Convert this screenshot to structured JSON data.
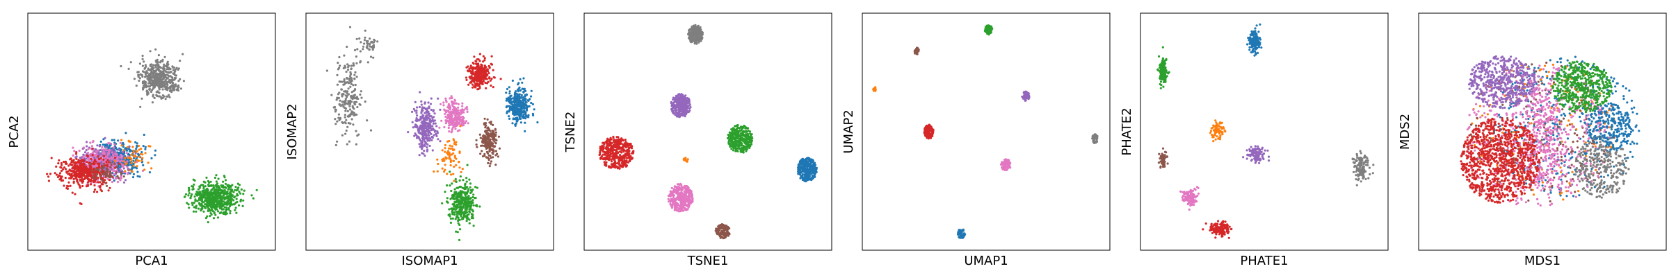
{
  "figure": {
    "panel_count": 6,
    "colors": {
      "blue": "#1f77b4",
      "orange": "#ff7f0e",
      "green": "#2ca02c",
      "red": "#d62728",
      "purple": "#9467bd",
      "brown": "#8c564b",
      "pink": "#e377c2",
      "gray": "#7f7f7f"
    }
  },
  "chart_data": [
    {
      "type": "scatter",
      "title": "",
      "xlabel": "PCA1",
      "ylabel": "PCA2",
      "xlim": [
        0,
        100
      ],
      "ylim": [
        0,
        100
      ],
      "grid": false,
      "ticks": false,
      "clusters": [
        {
          "color": "#7f7f7f",
          "center": [
            53,
            72
          ],
          "spread": [
            7,
            7
          ],
          "n": 450,
          "shape": "round"
        },
        {
          "color": "#1f77b4",
          "center": [
            36,
            39
          ],
          "spread": [
            9,
            6
          ],
          "n": 350,
          "shape": "round"
        },
        {
          "color": "#9467bd",
          "center": [
            30,
            38
          ],
          "spread": [
            8,
            6
          ],
          "n": 300,
          "shape": "round"
        },
        {
          "color": "#e377c2",
          "center": [
            30,
            37
          ],
          "spread": [
            9,
            7
          ],
          "n": 300,
          "shape": "round"
        },
        {
          "color": "#d62728",
          "center": [
            23,
            33
          ],
          "spread": [
            9,
            6
          ],
          "n": 450,
          "shape": "round"
        },
        {
          "color": "#ff7f0e",
          "center": [
            42,
            40
          ],
          "spread": [
            6,
            6
          ],
          "n": 50,
          "shape": "round"
        },
        {
          "color": "#8c564b",
          "center": [
            32,
            33
          ],
          "spread": [
            5,
            4
          ],
          "n": 60,
          "shape": "round"
        },
        {
          "color": "#2ca02c",
          "center": [
            76,
            22
          ],
          "spread": [
            9,
            6
          ],
          "n": 600,
          "shape": "round"
        }
      ]
    },
    {
      "type": "scatter",
      "title": "",
      "xlabel": "ISOMAP1",
      "ylabel": "ISOMAP2",
      "xlim": [
        0,
        100
      ],
      "ylim": [
        0,
        100
      ],
      "grid": false,
      "ticks": false,
      "clusters": [
        {
          "color": "#7f7f7f",
          "center": [
            17,
            65
          ],
          "spread": [
            5,
            14
          ],
          "n": 220,
          "shape": "round"
        },
        {
          "color": "#7f7f7f",
          "center": [
            25,
            87
          ],
          "spread": [
            3,
            4
          ],
          "n": 40,
          "shape": "round"
        },
        {
          "color": "#d62728",
          "center": [
            70,
            74
          ],
          "spread": [
            4,
            5
          ],
          "n": 300,
          "shape": "round"
        },
        {
          "color": "#1f77b4",
          "center": [
            86,
            61
          ],
          "spread": [
            4,
            7
          ],
          "n": 300,
          "shape": "round"
        },
        {
          "color": "#9467bd",
          "center": [
            48,
            52
          ],
          "spread": [
            4,
            9
          ],
          "n": 300,
          "shape": "round"
        },
        {
          "color": "#e377c2",
          "center": [
            60,
            57
          ],
          "spread": [
            4,
            6
          ],
          "n": 220,
          "shape": "round"
        },
        {
          "color": "#8c564b",
          "center": [
            74,
            46
          ],
          "spread": [
            3,
            7
          ],
          "n": 220,
          "shape": "round"
        },
        {
          "color": "#ff7f0e",
          "center": [
            58,
            40
          ],
          "spread": [
            5,
            8
          ],
          "n": 70,
          "shape": "round"
        },
        {
          "color": "#2ca02c",
          "center": [
            63,
            20
          ],
          "spread": [
            5,
            8
          ],
          "n": 350,
          "shape": "round"
        }
      ]
    },
    {
      "type": "scatter",
      "title": "",
      "xlabel": "TSNE1",
      "ylabel": "TSNE2",
      "xlim": [
        0,
        100
      ],
      "ylim": [
        0,
        100
      ],
      "grid": false,
      "ticks": false,
      "clusters": [
        {
          "color": "#7f7f7f",
          "center": [
            45,
            91
          ],
          "spread": [
            3,
            4
          ],
          "n": 260,
          "shape": "disc"
        },
        {
          "color": "#9467bd",
          "center": [
            39,
            61
          ],
          "spread": [
            4,
            5
          ],
          "n": 300,
          "shape": "disc"
        },
        {
          "color": "#2ca02c",
          "center": [
            63,
            47
          ],
          "spread": [
            5,
            6
          ],
          "n": 320,
          "shape": "disc"
        },
        {
          "color": "#d62728",
          "center": [
            13,
            41
          ],
          "spread": [
            7,
            7
          ],
          "n": 420,
          "shape": "disc"
        },
        {
          "color": "#1f77b4",
          "center": [
            90,
            34
          ],
          "spread": [
            4,
            5
          ],
          "n": 260,
          "shape": "disc"
        },
        {
          "color": "#e377c2",
          "center": [
            39,
            22
          ],
          "spread": [
            5,
            6
          ],
          "n": 320,
          "shape": "disc"
        },
        {
          "color": "#8c564b",
          "center": [
            56,
            8
          ],
          "spread": [
            3,
            3
          ],
          "n": 120,
          "shape": "disc"
        },
        {
          "color": "#ff7f0e",
          "center": [
            41,
            38
          ],
          "spread": [
            1,
            1
          ],
          "n": 15,
          "shape": "disc"
        }
      ]
    },
    {
      "type": "scatter",
      "title": "",
      "xlabel": "UMAP1",
      "ylabel": "UMAP2",
      "xlim": [
        0,
        100
      ],
      "ylim": [
        0,
        100
      ],
      "grid": false,
      "ticks": false,
      "clusters": [
        {
          "color": "#2ca02c",
          "center": [
            51,
            93
          ],
          "spread": [
            1.5,
            2
          ],
          "n": 80,
          "shape": "disc"
        },
        {
          "color": "#8c564b",
          "center": [
            22,
            84
          ],
          "spread": [
            1,
            1.5
          ],
          "n": 30,
          "shape": "disc"
        },
        {
          "color": "#ff7f0e",
          "center": [
            5,
            68
          ],
          "spread": [
            0.8,
            1
          ],
          "n": 8,
          "shape": "disc"
        },
        {
          "color": "#9467bd",
          "center": [
            66,
            65
          ],
          "spread": [
            1.5,
            2
          ],
          "n": 60,
          "shape": "disc"
        },
        {
          "color": "#d62728",
          "center": [
            27,
            50
          ],
          "spread": [
            2,
            3
          ],
          "n": 120,
          "shape": "disc"
        },
        {
          "color": "#7f7f7f",
          "center": [
            94,
            47
          ],
          "spread": [
            1.2,
            2
          ],
          "n": 50,
          "shape": "disc"
        },
        {
          "color": "#e377c2",
          "center": [
            58,
            36
          ],
          "spread": [
            2,
            2.5
          ],
          "n": 80,
          "shape": "disc"
        },
        {
          "color": "#1f77b4",
          "center": [
            40,
            7
          ],
          "spread": [
            1.5,
            2
          ],
          "n": 60,
          "shape": "disc"
        }
      ]
    },
    {
      "type": "scatter",
      "title": "",
      "xlabel": "PHATE1",
      "ylabel": "PHATE2",
      "xlim": [
        0,
        100
      ],
      "ylim": [
        0,
        100
      ],
      "grid": false,
      "ticks": false,
      "clusters": [
        {
          "color": "#1f77b4",
          "center": [
            46,
            88
          ],
          "spread": [
            2,
            4
          ],
          "n": 160,
          "shape": "round"
        },
        {
          "color": "#2ca02c",
          "center": [
            9,
            75
          ],
          "spread": [
            1.5,
            5
          ],
          "n": 150,
          "shape": "round"
        },
        {
          "color": "#ff7f0e",
          "center": [
            31,
            50
          ],
          "spread": [
            2.5,
            4
          ],
          "n": 70,
          "shape": "round"
        },
        {
          "color": "#9467bd",
          "center": [
            47,
            40
          ],
          "spread": [
            3,
            3
          ],
          "n": 110,
          "shape": "round"
        },
        {
          "color": "#8c564b",
          "center": [
            9,
            38
          ],
          "spread": [
            1.5,
            3
          ],
          "n": 60,
          "shape": "round"
        },
        {
          "color": "#7f7f7f",
          "center": [
            89,
            35
          ],
          "spread": [
            3,
            5
          ],
          "n": 120,
          "shape": "round"
        },
        {
          "color": "#e377c2",
          "center": [
            20,
            22
          ],
          "spread": [
            2.5,
            3
          ],
          "n": 120,
          "shape": "round"
        },
        {
          "color": "#d62728",
          "center": [
            32,
            9
          ],
          "spread": [
            4,
            2.5
          ],
          "n": 140,
          "shape": "round"
        }
      ]
    },
    {
      "type": "scatter",
      "title": "",
      "xlabel": "MDS1",
      "ylabel": "MDS2",
      "xlim": [
        0,
        100
      ],
      "ylim": [
        0,
        100
      ],
      "grid": false,
      "ticks": false,
      "clusters": [
        {
          "color": "#1f77b4",
          "center": [
            60,
            52
          ],
          "spread": [
            30,
            30
          ],
          "n": 380,
          "shape": "ball"
        },
        {
          "color": "#ff7f0e",
          "center": [
            50,
            50
          ],
          "spread": [
            30,
            30
          ],
          "n": 160,
          "shape": "ball"
        },
        {
          "color": "#8c564b",
          "center": [
            50,
            50
          ],
          "spread": [
            30,
            30
          ],
          "n": 200,
          "shape": "ball"
        },
        {
          "color": "#e377c2",
          "center": [
            48,
            48
          ],
          "spread": [
            30,
            30
          ],
          "n": 450,
          "shape": "ball"
        },
        {
          "color": "#7f7f7f",
          "center": [
            74,
            35
          ],
          "spread": [
            11,
            13
          ],
          "n": 300,
          "shape": "disc"
        },
        {
          "color": "#1f77b4",
          "center": [
            77,
            52
          ],
          "spread": [
            9,
            10
          ],
          "n": 220,
          "shape": "disc"
        },
        {
          "color": "#2ca02c",
          "center": [
            66,
            69
          ],
          "spread": [
            12,
            11
          ],
          "n": 500,
          "shape": "disc"
        },
        {
          "color": "#9467bd",
          "center": [
            34,
            71
          ],
          "spread": [
            14,
            11
          ],
          "n": 500,
          "shape": "disc"
        },
        {
          "color": "#e377c2",
          "center": [
            50,
            48
          ],
          "spread": [
            8,
            22
          ],
          "n": 300,
          "shape": "disc"
        },
        {
          "color": "#d62728",
          "center": [
            33,
            38
          ],
          "spread": [
            16,
            18
          ],
          "n": 1000,
          "shape": "disc"
        }
      ]
    }
  ]
}
